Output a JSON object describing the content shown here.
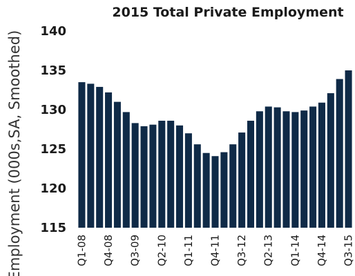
{
  "chart_data": {
    "type": "bar",
    "title": "2015 Total Private Employment",
    "xlabel": "",
    "ylabel": "Employment (000s,SA, Smoothed)",
    "ylim": [
      115,
      140
    ],
    "yticks": [
      115,
      120,
      125,
      130,
      135,
      140
    ],
    "grid": false,
    "bar_color": "#0f2a47",
    "categories": [
      "Q1-08",
      "Q2-08",
      "Q3-08",
      "Q4-08",
      "Q1-09",
      "Q2-09",
      "Q3-09",
      "Q4-09",
      "Q1-10",
      "Q2-10",
      "Q3-10",
      "Q4-10",
      "Q1-11",
      "Q2-11",
      "Q3-11",
      "Q4-11",
      "Q1-12",
      "Q2-12",
      "Q3-12",
      "Q4-12",
      "Q1-13",
      "Q2-13",
      "Q3-13",
      "Q4-13",
      "Q1-14",
      "Q2-14",
      "Q3-14",
      "Q4-14",
      "Q1-15",
      "Q2-15",
      "Q3-15"
    ],
    "shown_tick_labels": [
      "Q1-08",
      "Q4-08",
      "Q3-09",
      "Q2-10",
      "Q1-11",
      "Q4-11",
      "Q3-12",
      "Q2-13",
      "Q1-14",
      "Q4-14",
      "Q3-15"
    ],
    "values": [
      133.5,
      133.3,
      132.9,
      132.2,
      131.0,
      129.7,
      128.3,
      127.9,
      128.1,
      128.6,
      128.6,
      128.0,
      127.0,
      125.6,
      124.5,
      124.1,
      124.6,
      125.6,
      127.1,
      128.6,
      129.8,
      130.4,
      130.3,
      129.8,
      129.7,
      129.9,
      130.4,
      130.9,
      132.1,
      133.9,
      135.0
    ]
  }
}
